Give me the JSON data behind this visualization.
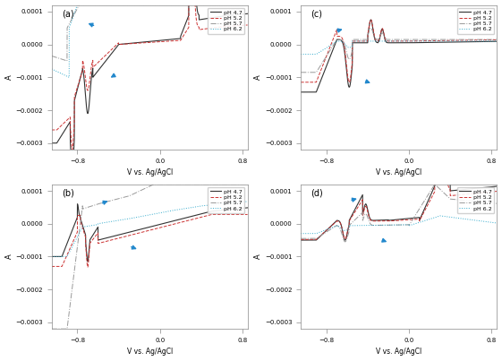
{
  "xlabel": "V vs. Ag/AgCl",
  "ylabel": "A",
  "xlim": [
    -1.05,
    0.85
  ],
  "ylim": [
    -0.00032,
    0.00012
  ],
  "yticks": [
    -0.0003,
    -0.0002,
    -0.0001,
    0.0,
    0.0001
  ],
  "xticks": [
    -0.8,
    0.0,
    0.8
  ],
  "legend_labels": [
    "pH 4.7",
    "pH 5.2",
    "pH 5.7",
    "pH 6.2"
  ],
  "colors": [
    "#333333",
    "#cc3333",
    "#999999",
    "#33aacc"
  ],
  "linestyles": [
    "-",
    "--",
    "-.",
    ":"
  ],
  "linewidths": [
    0.8,
    0.7,
    0.7,
    0.7
  ],
  "arrow_color": "#2288cc"
}
